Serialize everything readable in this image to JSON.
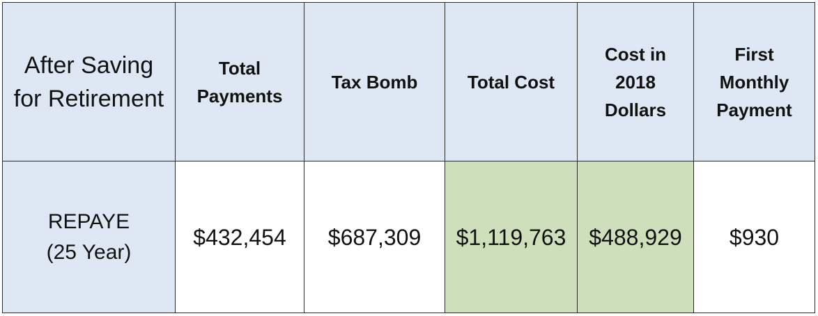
{
  "table": {
    "corner_header": [
      "After Saving",
      "for Retirement"
    ],
    "columns": [
      [
        "Total",
        "Payments"
      ],
      [
        "Tax Bomb"
      ],
      [
        "Total Cost"
      ],
      [
        "Cost in",
        "2018",
        "Dollars"
      ],
      [
        "First",
        "Monthly",
        "Payment"
      ]
    ],
    "rows": [
      {
        "label": [
          "REPAYE",
          "(25 Year)"
        ],
        "cells": [
          "$432,454",
          "$687,309",
          "$1,119,763",
          "$488,929",
          "$930"
        ],
        "highlighted": [
          false,
          false,
          true,
          true,
          false
        ]
      }
    ]
  },
  "colors": {
    "header_bg": "#dde8f4",
    "highlight_bg": "#cde0bb",
    "border": "#2b2b2b"
  }
}
